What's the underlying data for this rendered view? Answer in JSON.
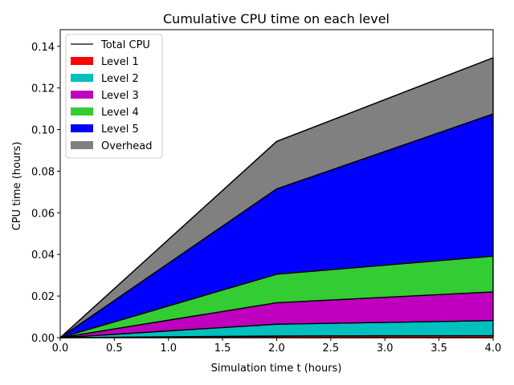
{
  "chart_data": {
    "type": "area",
    "stacked": true,
    "title": "Cumulative CPU time on each level",
    "xlabel": "Simulation time t (hours)",
    "ylabel": "CPU time (hours)",
    "x": [
      0.0,
      2.0,
      4.0
    ],
    "xlim": [
      0.0,
      4.0
    ],
    "ylim": [
      0.0,
      0.148
    ],
    "xticks": [
      0.0,
      0.5,
      1.0,
      1.5,
      2.0,
      2.5,
      3.0,
      3.5,
      4.0
    ],
    "xtick_labels": [
      "0.0",
      "0.5",
      "1.0",
      "1.5",
      "2.0",
      "2.5",
      "3.0",
      "3.5",
      "4.0"
    ],
    "yticks": [
      0.0,
      0.02,
      0.04,
      0.06,
      0.08,
      0.1,
      0.12,
      0.14
    ],
    "ytick_labels": [
      "0.00",
      "0.02",
      "0.04",
      "0.06",
      "0.08",
      "0.10",
      "0.12",
      "0.14"
    ],
    "legend_position": "top-left",
    "grid": false,
    "total_line": {
      "name": "Total CPU",
      "color": "#000000",
      "values": [
        0.0,
        0.0943,
        0.1345
      ]
    },
    "series": [
      {
        "name": "Level 1",
        "color": "#ff0000",
        "values": [
          0.0,
          0.0008,
          0.001
        ]
      },
      {
        "name": "Level 2",
        "color": "#00bfbf",
        "values": [
          0.0,
          0.0057,
          0.0072
        ]
      },
      {
        "name": "Level 3",
        "color": "#bf00bf",
        "values": [
          0.0,
          0.0103,
          0.0138
        ]
      },
      {
        "name": "Level 4",
        "color": "#33cc33",
        "values": [
          0.0,
          0.0137,
          0.0172
        ]
      },
      {
        "name": "Level 5",
        "color": "#0000ff",
        "values": [
          0.0,
          0.041,
          0.0683
        ]
      },
      {
        "name": "Overhead",
        "color": "#808080",
        "values": [
          0.0,
          0.0228,
          0.027
        ]
      }
    ]
  }
}
